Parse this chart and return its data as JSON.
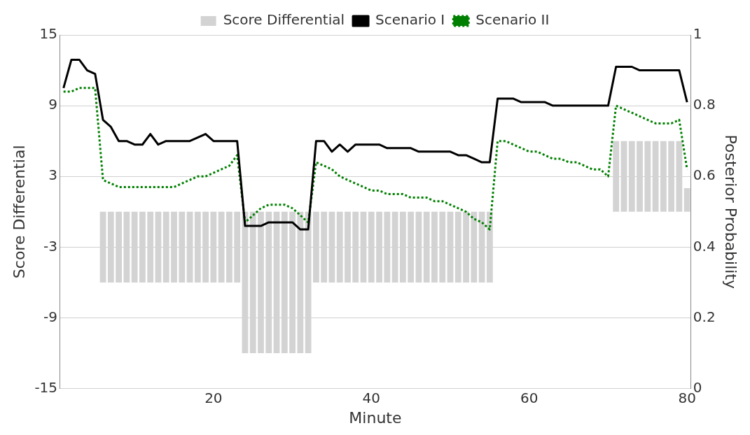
{
  "chart_data": {
    "type": "bar",
    "xlabel": "Minute",
    "ylabel": "Score Differential",
    "y2label": "Posterior Probability",
    "x": [
      1,
      2,
      3,
      4,
      5,
      6,
      7,
      8,
      9,
      10,
      11,
      12,
      13,
      14,
      15,
      16,
      17,
      18,
      19,
      20,
      21,
      22,
      23,
      24,
      25,
      26,
      27,
      28,
      29,
      30,
      31,
      32,
      33,
      34,
      35,
      36,
      37,
      38,
      39,
      40,
      41,
      42,
      43,
      44,
      45,
      46,
      47,
      48,
      49,
      50,
      51,
      52,
      53,
      54,
      55,
      56,
      57,
      58,
      59,
      60,
      61,
      62,
      63,
      64,
      65,
      66,
      67,
      68,
      69,
      70,
      71,
      72,
      73,
      74,
      75,
      76,
      77,
      78,
      79,
      80
    ],
    "xlim": [
      0.5,
      80.5
    ],
    "xticks": [
      20,
      40,
      60,
      80
    ],
    "ylim": [
      -15,
      15
    ],
    "yticks": [
      -15,
      -9,
      -3,
      3,
      9,
      15
    ],
    "y2lim": [
      0,
      1
    ],
    "y2ticks": [
      0,
      0.2,
      0.4,
      0.6,
      0.8,
      1
    ],
    "grid": "y",
    "legend": "top",
    "series": [
      {
        "name": "Score Differential",
        "color": "#d3d3d3",
        "values": [
          0,
          0,
          0,
          0,
          0,
          -6,
          -6,
          -6,
          -6,
          -6,
          -6,
          -6,
          -6,
          -6,
          -6,
          -6,
          -6,
          -6,
          -6,
          -6,
          -6,
          -6,
          -6,
          -12,
          -12,
          -12,
          -12,
          -12,
          -12,
          -12,
          -12,
          -12,
          -6,
          -6,
          -6,
          -6,
          -6,
          -6,
          -6,
          -6,
          -6,
          -6,
          -6,
          -6,
          -6,
          -6,
          -6,
          -6,
          -6,
          -6,
          -6,
          -6,
          -6,
          -6,
          -6,
          0,
          0,
          0,
          0,
          0,
          0,
          0,
          0,
          0,
          0,
          0,
          0,
          0,
          0,
          0,
          6,
          6,
          6,
          6,
          6,
          6,
          6,
          6,
          6,
          2
        ]
      },
      {
        "name": "Scenario I",
        "type": "line",
        "axis": "y2",
        "color": "#000000",
        "line_style": "solid",
        "values": [
          0.85,
          0.93,
          0.93,
          0.9,
          0.89,
          0.76,
          0.74,
          0.7,
          0.7,
          0.69,
          0.69,
          0.72,
          0.69,
          0.7,
          0.7,
          0.7,
          0.7,
          0.71,
          0.72,
          0.7,
          0.7,
          0.7,
          0.7,
          0.46,
          0.46,
          0.46,
          0.47,
          0.47,
          0.47,
          0.47,
          0.45,
          0.45,
          0.7,
          0.7,
          0.67,
          0.69,
          0.67,
          0.69,
          0.69,
          0.69,
          0.69,
          0.68,
          0.68,
          0.68,
          0.68,
          0.67,
          0.67,
          0.67,
          0.67,
          0.67,
          0.66,
          0.66,
          0.65,
          0.64,
          0.64,
          0.82,
          0.82,
          0.82,
          0.81,
          0.81,
          0.81,
          0.81,
          0.8,
          0.8,
          0.8,
          0.8,
          0.8,
          0.8,
          0.8,
          0.8,
          0.91,
          0.91,
          0.91,
          0.9,
          0.9,
          0.9,
          0.9,
          0.9,
          0.9,
          0.81
        ]
      },
      {
        "name": "Scenario II",
        "type": "line",
        "axis": "y2",
        "color": "#008000",
        "line_style": "dotted",
        "values": [
          0.84,
          0.84,
          0.85,
          0.85,
          0.85,
          0.59,
          0.58,
          0.57,
          0.57,
          0.57,
          0.57,
          0.57,
          0.57,
          0.57,
          0.57,
          0.58,
          0.59,
          0.6,
          0.6,
          0.61,
          0.62,
          0.63,
          0.66,
          0.47,
          0.49,
          0.51,
          0.52,
          0.52,
          0.52,
          0.51,
          0.49,
          0.47,
          0.64,
          0.63,
          0.62,
          0.6,
          0.59,
          0.58,
          0.57,
          0.56,
          0.56,
          0.55,
          0.55,
          0.55,
          0.54,
          0.54,
          0.54,
          0.53,
          0.53,
          0.52,
          0.51,
          0.5,
          0.48,
          0.47,
          0.45,
          0.7,
          0.7,
          0.69,
          0.68,
          0.67,
          0.67,
          0.66,
          0.65,
          0.65,
          0.64,
          0.64,
          0.63,
          0.62,
          0.62,
          0.6,
          0.8,
          0.79,
          0.78,
          0.77,
          0.76,
          0.75,
          0.75,
          0.75,
          0.76,
          0.62
        ]
      }
    ]
  }
}
